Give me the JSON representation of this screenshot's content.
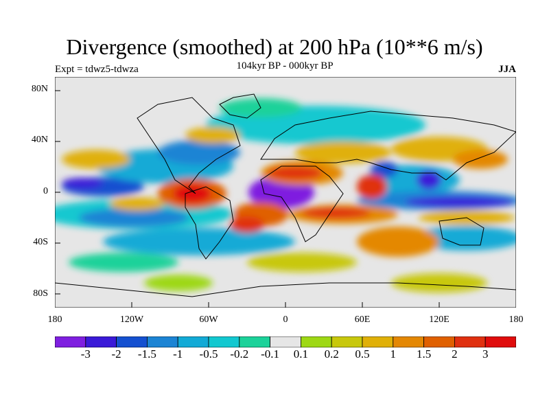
{
  "header": {
    "title": "Divergence (smoothed) at 200 hPa (10**6 m/s)",
    "subtitle": "104kyr BP - 000kyr BP",
    "experiment": "Expt = tdwz5-tdwza",
    "season": "JJA"
  },
  "axes": {
    "y_ticks": [
      "80N",
      "40N",
      "0",
      "40S",
      "80S"
    ],
    "x_ticks": [
      "180",
      "120W",
      "60W",
      "0",
      "60E",
      "120E",
      "180"
    ]
  },
  "colorbar": {
    "labels": [
      "-3",
      "-2",
      "-1.5",
      "-1",
      "-0.5",
      "-0.2",
      "-0.1",
      "0.1",
      "0.2",
      "0.5",
      "1",
      "1.5",
      "2",
      "3"
    ],
    "colors": [
      "#7f1fe0",
      "#3a1ad8",
      "#1450d0",
      "#1c84d4",
      "#12aad6",
      "#12c8d0",
      "#1cd29a",
      "#e6e6e6",
      "#9ed814",
      "#c8c80c",
      "#e0b008",
      "#e48804",
      "#e06000",
      "#e03010",
      "#e00c0c"
    ]
  }
}
